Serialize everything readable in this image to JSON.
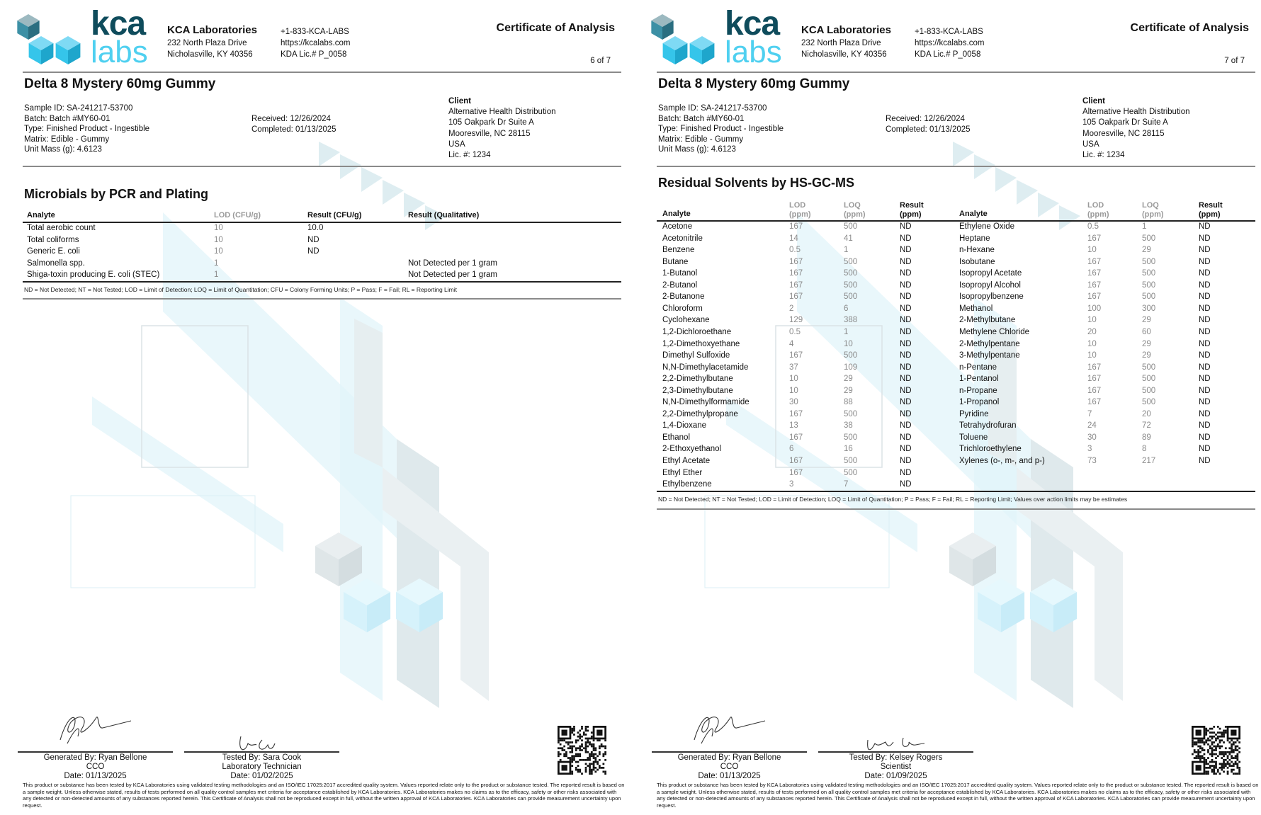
{
  "lab": {
    "logo_text_top": "kca",
    "logo_text_bottom": "labs",
    "name": "KCA Laboratories",
    "address1": "232 North Plaza Drive",
    "address2": "Nicholasville, KY 40356",
    "phone": "+1-833-KCA-LABS",
    "website": "https://kcalabs.com",
    "license": "KDA Lic.# P_0058",
    "doc_title": "Certificate of Analysis"
  },
  "colors": {
    "logo_dark": "#0f4c5c",
    "logo_light": "#4fd0f0",
    "cube_dark": "#3a8fa3",
    "cube_light": "#35c5ea"
  },
  "sample": {
    "product": "Delta 8 Mystery 60mg Gummy",
    "lines": [
      "Sample ID: SA-241217-53700",
      "Batch: Batch #MY60-01",
      "Type: Finished Product - Ingestible",
      "Matrix: Edible - Gummy",
      "Unit Mass (g): 4.6123"
    ],
    "received": "Received: 12/26/2024",
    "completed": "Completed: 01/13/2025",
    "client_label": "Client",
    "client_lines": [
      "Alternative Health Distribution",
      "105 Oakpark Dr Suite A",
      "Mooresville, NC 28115",
      "USA",
      "Lic. #: 1234"
    ]
  },
  "disclaimer": "This product or substance has been tested by KCA Laboratories using validated testing methodologies and an ISO/IEC 17025:2017 accredited quality system. Values reported relate only to the product or substance tested. The reported result is based on a sample weight. Unless otherwise stated, results of tests performed on all quality control samples met criteria for acceptance established by KCA Laboratories. KCA Laboratories makes no claims as to the efficacy, safety or other risks associated with any detected or non-detected amounts of any substances reported herein. This Certificate of Analysis shall not be reproduced except in full, without the written approval of KCA Laboratories. KCA Laboratories can provide measurement uncertainty upon request.",
  "pages": [
    {
      "page_label": "6 of 7",
      "section_title": "Microbials by PCR and Plating",
      "columns": [
        "Analyte",
        "LOD (CFU/g)",
        "Result (CFU/g)",
        "Result (Qualitative)"
      ],
      "rows": [
        [
          "Total aerobic count",
          "10",
          "10.0",
          ""
        ],
        [
          "Total coliforms",
          "10",
          "ND",
          ""
        ],
        [
          "Generic E. coli",
          "10",
          "ND",
          ""
        ],
        [
          "Salmonella spp.",
          "1",
          "",
          "Not Detected per 1 gram"
        ],
        [
          "Shiga-toxin producing E. coli (STEC)",
          "1",
          "",
          "Not Detected per 1 gram"
        ]
      ],
      "footnote": "ND = Not Detected; NT = Not Tested; LOD = Limit of Detection; LOQ = Limit of Quantitation; CFU = Colony Forming Units; P = Pass; F = Fail; RL = Reporting Limit",
      "signatures": [
        {
          "line1": "Generated By: Ryan Bellone",
          "line2": "CCO",
          "line3": "Date: 01/13/2025"
        },
        {
          "line1": "Tested By: Sara Cook",
          "line2": "Laboratory Technician",
          "line3": "Date: 01/02/2025"
        }
      ]
    },
    {
      "page_label": "7 of 7",
      "section_title": "Residual Solvents by HS-GC-MS",
      "columns": [
        [
          "Analyte"
        ],
        [
          "LOD",
          "(ppm)"
        ],
        [
          "LOQ",
          "(ppm)"
        ],
        [
          "Result",
          "(ppm)"
        ]
      ],
      "rows_left": [
        [
          "Acetone",
          "167",
          "500",
          "ND"
        ],
        [
          "Acetonitrile",
          "14",
          "41",
          "ND"
        ],
        [
          "Benzene",
          "0.5",
          "1",
          "ND"
        ],
        [
          "Butane",
          "167",
          "500",
          "ND"
        ],
        [
          "1-Butanol",
          "167",
          "500",
          "ND"
        ],
        [
          "2-Butanol",
          "167",
          "500",
          "ND"
        ],
        [
          "2-Butanone",
          "167",
          "500",
          "ND"
        ],
        [
          "Chloroform",
          "2",
          "6",
          "ND"
        ],
        [
          "Cyclohexane",
          "129",
          "388",
          "ND"
        ],
        [
          "1,2-Dichloroethane",
          "0.5",
          "1",
          "ND"
        ],
        [
          "1,2-Dimethoxyethane",
          "4",
          "10",
          "ND"
        ],
        [
          "Dimethyl Sulfoxide",
          "167",
          "500",
          "ND"
        ],
        [
          "N,N-Dimethylacetamide",
          "37",
          "109",
          "ND"
        ],
        [
          "2,2-Dimethylbutane",
          "10",
          "29",
          "ND"
        ],
        [
          "2,3-Dimethylbutane",
          "10",
          "29",
          "ND"
        ],
        [
          "N,N-Dimethylformamide",
          "30",
          "88",
          "ND"
        ],
        [
          "2,2-Dimethylpropane",
          "167",
          "500",
          "ND"
        ],
        [
          "1,4-Dioxane",
          "13",
          "38",
          "ND"
        ],
        [
          "Ethanol",
          "167",
          "500",
          "ND"
        ],
        [
          "2-Ethoxyethanol",
          "6",
          "16",
          "ND"
        ],
        [
          "Ethyl Acetate",
          "167",
          "500",
          "ND"
        ],
        [
          "Ethyl Ether",
          "167",
          "500",
          "ND"
        ],
        [
          "Ethylbenzene",
          "3",
          "7",
          "ND"
        ]
      ],
      "rows_right": [
        [
          "Ethylene Oxide",
          "0.5",
          "1",
          "ND"
        ],
        [
          "Heptane",
          "167",
          "500",
          "ND"
        ],
        [
          "n-Hexane",
          "10",
          "29",
          "ND"
        ],
        [
          "Isobutane",
          "167",
          "500",
          "ND"
        ],
        [
          "Isopropyl Acetate",
          "167",
          "500",
          "ND"
        ],
        [
          "Isopropyl Alcohol",
          "167",
          "500",
          "ND"
        ],
        [
          "Isopropylbenzene",
          "167",
          "500",
          "ND"
        ],
        [
          "Methanol",
          "100",
          "300",
          "ND"
        ],
        [
          "2-Methylbutane",
          "10",
          "29",
          "ND"
        ],
        [
          "Methylene Chloride",
          "20",
          "60",
          "ND"
        ],
        [
          "2-Methylpentane",
          "10",
          "29",
          "ND"
        ],
        [
          "3-Methylpentane",
          "10",
          "29",
          "ND"
        ],
        [
          "n-Pentane",
          "167",
          "500",
          "ND"
        ],
        [
          "1-Pentanol",
          "167",
          "500",
          "ND"
        ],
        [
          "n-Propane",
          "167",
          "500",
          "ND"
        ],
        [
          "1-Propanol",
          "167",
          "500",
          "ND"
        ],
        [
          "Pyridine",
          "7",
          "20",
          "ND"
        ],
        [
          "Tetrahydrofuran",
          "24",
          "72",
          "ND"
        ],
        [
          "Toluene",
          "30",
          "89",
          "ND"
        ],
        [
          "Trichloroethylene",
          "3",
          "8",
          "ND"
        ],
        [
          "Xylenes (o-, m-, and p-)",
          "73",
          "217",
          "ND"
        ]
      ],
      "footnote": "ND = Not Detected; NT = Not Tested; LOD = Limit of Detection; LOQ = Limit of Quantitation; P = Pass; F = Fail; RL = Reporting Limit; Values over action limits may be estimates",
      "signatures": [
        {
          "line1": "Generated By: Ryan Bellone",
          "line2": "CCO",
          "line3": "Date: 01/13/2025"
        },
        {
          "line1": "Tested By: Kelsey Rogers",
          "line2": "Scientist",
          "line3": "Date: 01/09/2025"
        }
      ]
    }
  ]
}
